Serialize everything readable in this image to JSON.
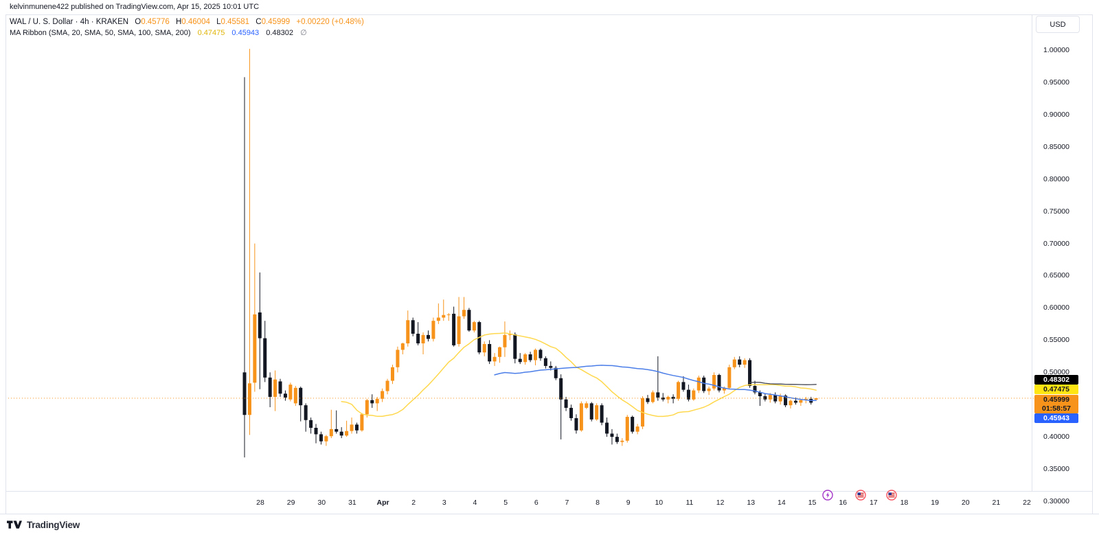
{
  "publisher": "kelvinmunene422 published on TradingView.com, Apr 15, 2025 10:01 UTC",
  "header": {
    "symbol": "WAL / U. S. Dollar",
    "sep": "·",
    "timeframe": "4h",
    "exchange": "KRAKEN",
    "open_label": "O",
    "open": "0.45776",
    "high_label": "H",
    "high": "0.46004",
    "low_label": "L",
    "low": "0.45581",
    "close_label": "C",
    "close": "0.45999",
    "change": "+0.00220 (+0.48%)"
  },
  "ma_ribbon": {
    "label": "MA Ribbon (SMA, 20, SMA, 50, SMA, 100, SMA, 200)",
    "sma20": "0.47475",
    "sma50": "0.45943",
    "sma100": "0.48302",
    "sma200_empty": "∅"
  },
  "price_scale": {
    "currency": "USD",
    "ticks": [
      "1.00000",
      "0.95000",
      "0.90000",
      "0.85000",
      "0.80000",
      "0.75000",
      "0.70000",
      "0.65000",
      "0.60000",
      "0.55000",
      "0.50000",
      "0.40000",
      "0.35000",
      "0.30000"
    ],
    "badges": [
      {
        "id": "sma100",
        "text": "0.48302"
      },
      {
        "id": "sma20",
        "text": "0.47475"
      },
      {
        "id": "last",
        "text": "0.45999",
        "countdown": "01:58:57"
      },
      {
        "id": "sma50",
        "text": "0.45943"
      }
    ]
  },
  "time_scale": {
    "labels": [
      "28",
      "29",
      "30",
      "31",
      "Apr",
      "2",
      "3",
      "4",
      "5",
      "6",
      "7",
      "8",
      "9",
      "10",
      "11",
      "12",
      "13",
      "14",
      "15",
      "16",
      "17",
      "18",
      "19",
      "20",
      "21",
      "22"
    ],
    "bold_label": "Apr"
  },
  "events": [
    {
      "type": "lightning"
    },
    {
      "type": "us-flag"
    },
    {
      "type": "us-flag"
    }
  ],
  "footer": {
    "brand": "TradingView"
  },
  "colors": {
    "up": "#F7931A",
    "down": "#131722",
    "sma20_line": "#FFD84D",
    "sma50_line": "#4A7DE8",
    "sma100_line": "#434651",
    "last_price_line": "#F7931A",
    "frame": "#E0E3EB"
  },
  "chart_data": {
    "type": "candlestick",
    "title": "WAL / U. S. Dollar · 4h · KRAKEN",
    "symbol": "WAL/USD",
    "exchange": "KRAKEN",
    "timeframe": "4h",
    "current_ohlc": {
      "o": 0.45776,
      "h": 0.46004,
      "l": 0.45581,
      "c": 0.45999,
      "change": 0.0022,
      "change_pct": 0.48
    },
    "overlays": {
      "name": "MA Ribbon",
      "periods": [
        20,
        50,
        100,
        200
      ],
      "values": {
        "sma20": 0.47475,
        "sma50": 0.45943,
        "sma100": 0.48302,
        "sma200": null
      }
    },
    "y_axis": {
      "range": [
        0.3,
        1.005
      ],
      "tick_step": 0.05,
      "grid": false,
      "side": "right"
    },
    "x_axis": {
      "start": "Mar 27",
      "end": "Apr 22",
      "tick_labels": [
        "28",
        "29",
        "30",
        "31",
        "Apr",
        "2",
        "3",
        "4",
        "5",
        "6",
        "7",
        "8",
        "9",
        "10",
        "11",
        "12",
        "13",
        "14",
        "15",
        "16",
        "17",
        "18",
        "19",
        "20",
        "21",
        "22"
      ]
    },
    "last_price": 0.45999,
    "bar_countdown": "01:58:57",
    "candles_ohlc": [
      [
        0.5,
        0.958,
        0.368,
        0.434
      ],
      [
        0.434,
        1.002,
        0.403,
        0.483
      ],
      [
        0.484,
        0.7,
        0.47,
        0.59
      ],
      [
        0.593,
        0.655,
        0.474,
        0.553
      ],
      [
        0.553,
        0.58,
        0.485,
        0.492
      ],
      [
        0.492,
        0.5,
        0.446,
        0.462
      ],
      [
        0.462,
        0.503,
        0.44,
        0.489
      ],
      [
        0.486,
        0.49,
        0.462,
        0.467
      ],
      [
        0.467,
        0.472,
        0.456,
        0.461
      ],
      [
        0.458,
        0.484,
        0.455,
        0.481
      ],
      [
        0.452,
        0.479,
        0.448,
        0.476
      ],
      [
        0.476,
        0.478,
        0.424,
        0.449
      ],
      [
        0.449,
        0.452,
        0.408,
        0.426
      ],
      [
        0.426,
        0.43,
        0.405,
        0.414
      ],
      [
        0.414,
        0.42,
        0.39,
        0.404
      ],
      [
        0.404,
        0.408,
        0.388,
        0.393
      ],
      [
        0.393,
        0.403,
        0.386,
        0.401
      ],
      [
        0.401,
        0.442,
        0.398,
        0.412
      ],
      [
        0.412,
        0.441,
        0.405,
        0.408
      ],
      [
        0.408,
        0.415,
        0.398,
        0.402
      ],
      [
        0.402,
        0.425,
        0.4,
        0.409
      ],
      [
        0.409,
        0.43,
        0.405,
        0.419
      ],
      [
        0.419,
        0.422,
        0.405,
        0.41
      ],
      [
        0.41,
        0.437,
        0.408,
        0.435
      ],
      [
        0.435,
        0.459,
        0.43,
        0.457
      ],
      [
        0.457,
        0.466,
        0.445,
        0.452
      ],
      [
        0.452,
        0.462,
        0.44,
        0.459
      ],
      [
        0.459,
        0.475,
        0.454,
        0.471
      ],
      [
        0.471,
        0.49,
        0.466,
        0.487
      ],
      [
        0.487,
        0.512,
        0.482,
        0.508
      ],
      [
        0.508,
        0.54,
        0.5,
        0.535
      ],
      [
        0.535,
        0.546,
        0.528,
        0.545
      ],
      [
        0.545,
        0.596,
        0.54,
        0.581
      ],
      [
        0.581,
        0.585,
        0.556,
        0.56
      ],
      [
        0.56,
        0.578,
        0.542,
        0.545
      ],
      [
        0.545,
        0.562,
        0.528,
        0.558
      ],
      [
        0.558,
        0.565,
        0.548,
        0.552
      ],
      [
        0.552,
        0.585,
        0.548,
        0.58
      ],
      [
        0.58,
        0.607,
        0.575,
        0.585
      ],
      [
        0.585,
        0.613,
        0.58,
        0.589
      ],
      [
        0.589,
        0.592,
        0.58,
        0.59
      ],
      [
        0.591,
        0.602,
        0.54,
        0.542
      ],
      [
        0.544,
        0.617,
        0.54,
        0.587
      ],
      [
        0.587,
        0.617,
        0.583,
        0.597
      ],
      [
        0.597,
        0.6,
        0.563,
        0.565
      ],
      [
        0.565,
        0.58,
        0.562,
        0.578
      ],
      [
        0.578,
        0.58,
        0.528,
        0.531
      ],
      [
        0.531,
        0.548,
        0.525,
        0.544
      ],
      [
        0.544,
        0.55,
        0.513,
        0.517
      ],
      [
        0.517,
        0.53,
        0.51,
        0.524
      ],
      [
        0.524,
        0.54,
        0.515,
        0.539
      ],
      [
        0.539,
        0.579,
        0.524,
        0.558
      ],
      [
        0.558,
        0.565,
        0.55,
        0.559
      ],
      [
        0.559,
        0.562,
        0.514,
        0.521
      ],
      [
        0.521,
        0.53,
        0.513,
        0.516
      ],
      [
        0.516,
        0.53,
        0.512,
        0.528
      ],
      [
        0.528,
        0.532,
        0.516,
        0.519
      ],
      [
        0.519,
        0.537,
        0.511,
        0.535
      ],
      [
        0.535,
        0.537,
        0.518,
        0.522
      ],
      [
        0.522,
        0.525,
        0.506,
        0.51
      ],
      [
        0.51,
        0.517,
        0.503,
        0.507
      ],
      [
        0.507,
        0.51,
        0.488,
        0.491
      ],
      [
        0.491,
        0.497,
        0.396,
        0.458
      ],
      [
        0.458,
        0.462,
        0.44,
        0.445
      ],
      [
        0.445,
        0.45,
        0.425,
        0.429
      ],
      [
        0.429,
        0.435,
        0.405,
        0.41
      ],
      [
        0.41,
        0.455,
        0.408,
        0.452
      ],
      [
        0.445,
        0.455,
        0.443,
        0.452
      ],
      [
        0.452,
        0.454,
        0.424,
        0.427
      ],
      [
        0.427,
        0.452,
        0.425,
        0.449
      ],
      [
        0.449,
        0.452,
        0.418,
        0.422
      ],
      [
        0.422,
        0.43,
        0.4,
        0.405
      ],
      [
        0.405,
        0.412,
        0.388,
        0.4
      ],
      [
        0.4,
        0.405,
        0.389,
        0.392
      ],
      [
        0.392,
        0.398,
        0.386,
        0.394
      ],
      [
        0.394,
        0.434,
        0.391,
        0.431
      ],
      [
        0.431,
        0.433,
        0.405,
        0.408
      ],
      [
        0.408,
        0.42,
        0.404,
        0.416
      ],
      [
        0.416,
        0.463,
        0.412,
        0.46
      ],
      [
        0.46,
        0.465,
        0.451,
        0.454
      ],
      [
        0.454,
        0.472,
        0.452,
        0.469
      ],
      [
        0.469,
        0.525,
        0.456,
        0.461
      ],
      [
        0.461,
        0.468,
        0.455,
        0.458
      ],
      [
        0.458,
        0.464,
        0.452,
        0.462
      ],
      [
        0.462,
        0.466,
        0.452,
        0.459
      ],
      [
        0.459,
        0.487,
        0.456,
        0.485
      ],
      [
        0.485,
        0.494,
        0.47,
        0.473
      ],
      [
        0.473,
        0.481,
        0.455,
        0.458
      ],
      [
        0.458,
        0.475,
        0.456,
        0.472
      ],
      [
        0.472,
        0.495,
        0.468,
        0.492
      ],
      [
        0.492,
        0.495,
        0.468,
        0.471
      ],
      [
        0.471,
        0.478,
        0.465,
        0.475
      ],
      [
        0.475,
        0.5,
        0.472,
        0.496
      ],
      [
        0.496,
        0.498,
        0.469,
        0.472
      ],
      [
        0.472,
        0.478,
        0.467,
        0.476
      ],
      [
        0.476,
        0.512,
        0.474,
        0.508
      ],
      [
        0.508,
        0.524,
        0.505,
        0.52
      ],
      [
        0.52,
        0.525,
        0.508,
        0.512
      ],
      [
        0.512,
        0.522,
        0.507,
        0.519
      ],
      [
        0.519,
        0.522,
        0.476,
        0.479
      ],
      [
        0.479,
        0.487,
        0.466,
        0.469
      ],
      [
        0.469,
        0.472,
        0.448,
        0.463
      ],
      [
        0.463,
        0.467,
        0.455,
        0.458
      ],
      [
        0.458,
        0.468,
        0.453,
        0.465
      ],
      [
        0.465,
        0.469,
        0.452,
        0.455
      ],
      [
        0.455,
        0.467,
        0.45,
        0.464
      ],
      [
        0.464,
        0.466,
        0.446,
        0.449
      ],
      [
        0.449,
        0.458,
        0.444,
        0.456
      ],
      [
        0.456,
        0.461,
        0.45,
        0.453
      ],
      [
        0.453,
        0.459,
        0.448,
        0.457
      ],
      [
        0.457,
        0.462,
        0.452,
        0.459
      ],
      [
        0.459,
        0.462,
        0.45,
        0.453
      ],
      [
        0.45776,
        0.46004,
        0.45581,
        0.45999
      ]
    ]
  }
}
